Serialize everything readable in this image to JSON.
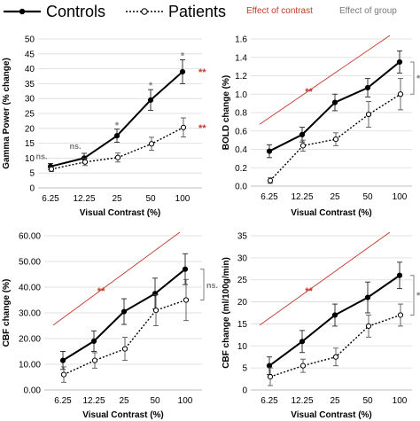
{
  "legend": {
    "controls": "Controls",
    "patients": "Patients",
    "effect_contrast": "Effect of contrast",
    "effect_group": "Effect of group"
  },
  "colors": {
    "controls": "#000000",
    "patients": "#000000",
    "contrast_effect": "#c0392b",
    "group_effect": "#7f7f7f"
  },
  "chart_data": [
    {
      "id": "gamma",
      "type": "line",
      "categories": [
        "6.25",
        "12.25",
        "25",
        "50",
        "100"
      ],
      "xlabel": "Visual Contrast (%)",
      "ylabel": "Gamma Power (% change)",
      "ylim": [
        0,
        50
      ],
      "yticks": [
        "0",
        "5",
        "10",
        "15",
        "20",
        "25",
        "30",
        "35",
        "40",
        "45",
        "50"
      ],
      "series": [
        {
          "name": "Controls",
          "values": [
            7.2,
            10.0,
            17.5,
            29.5,
            39.0
          ],
          "err": [
            1.0,
            1.6,
            2.2,
            3.5,
            4.0
          ]
        },
        {
          "name": "Patients",
          "values": [
            6.3,
            8.7,
            10.2,
            14.8,
            20.3
          ],
          "err": [
            0.8,
            1.2,
            1.5,
            2.2,
            3.2
          ]
        }
      ],
      "group_marks": [
        "ns.",
        "ns.",
        "*",
        "*",
        "*"
      ],
      "contrast_marks": [
        "**",
        "**"
      ]
    },
    {
      "id": "bold",
      "type": "line",
      "categories": [
        "6.25",
        "12.25",
        "25",
        "50",
        "100"
      ],
      "xlabel": "",
      "ylabel": "BOLD change (%)",
      "ylim": [
        0,
        1.6
      ],
      "yticks": [
        "0.0",
        "0.2",
        "0.4",
        "0.6",
        "0.8",
        "1.0",
        "1.2",
        "1.4",
        "1.6"
      ],
      "series": [
        {
          "name": "Controls",
          "values": [
            0.38,
            0.56,
            0.91,
            1.07,
            1.35
          ],
          "err": [
            0.07,
            0.08,
            0.09,
            0.1,
            0.12
          ]
        },
        {
          "name": "Patients",
          "values": [
            0.06,
            0.44,
            0.51,
            0.78,
            1.0
          ],
          "err": [
            0.03,
            0.06,
            0.07,
            0.14,
            0.17
          ]
        }
      ],
      "contrast_marks": [
        "**"
      ],
      "group_marks": [
        "*"
      ]
    },
    {
      "id": "cbf",
      "type": "line",
      "categories": [
        "6.25",
        "12.25",
        "25",
        "50",
        "100"
      ],
      "xlabel": "Visual Contrast (%)",
      "ylabel": "CBF change (%)",
      "ylim": [
        0,
        60
      ],
      "yticks": [
        "0.00",
        "10.00",
        "20.00",
        "30.00",
        "40.00",
        "50.00",
        "60.00"
      ],
      "series": [
        {
          "name": "Controls",
          "values": [
            11.5,
            19.0,
            30.5,
            37.5,
            47.0
          ],
          "err": [
            3.5,
            4.0,
            5.0,
            6.0,
            6.0
          ]
        },
        {
          "name": "Patients",
          "values": [
            6.0,
            11.5,
            16.0,
            31.0,
            35.0
          ],
          "err": [
            3.0,
            3.0,
            4.5,
            6.0,
            8.0
          ]
        }
      ],
      "contrast_marks": [
        "**"
      ],
      "group_marks": [
        "ns."
      ]
    },
    {
      "id": "cbf_abs",
      "type": "line",
      "categories": [
        "6.25",
        "12.25",
        "25",
        "50",
        "100"
      ],
      "xlabel": "Visual Contrast (%)",
      "ylabel": "CBF change (ml/100g/min)",
      "ylim": [
        0,
        35
      ],
      "yticks": [
        "0",
        "5",
        "10",
        "15",
        "20",
        "25",
        "30",
        "35"
      ],
      "series": [
        {
          "name": "Controls",
          "values": [
            5.5,
            11.0,
            17.0,
            21.0,
            26.0
          ],
          "err": [
            2.0,
            2.5,
            2.5,
            3.5,
            3.0
          ]
        },
        {
          "name": "Patients",
          "values": [
            3.0,
            5.5,
            7.5,
            14.5,
            17.0
          ],
          "err": [
            2.0,
            1.5,
            2.0,
            2.5,
            2.5
          ]
        }
      ],
      "contrast_marks": [
        "**"
      ],
      "group_marks": [
        "*"
      ]
    }
  ]
}
